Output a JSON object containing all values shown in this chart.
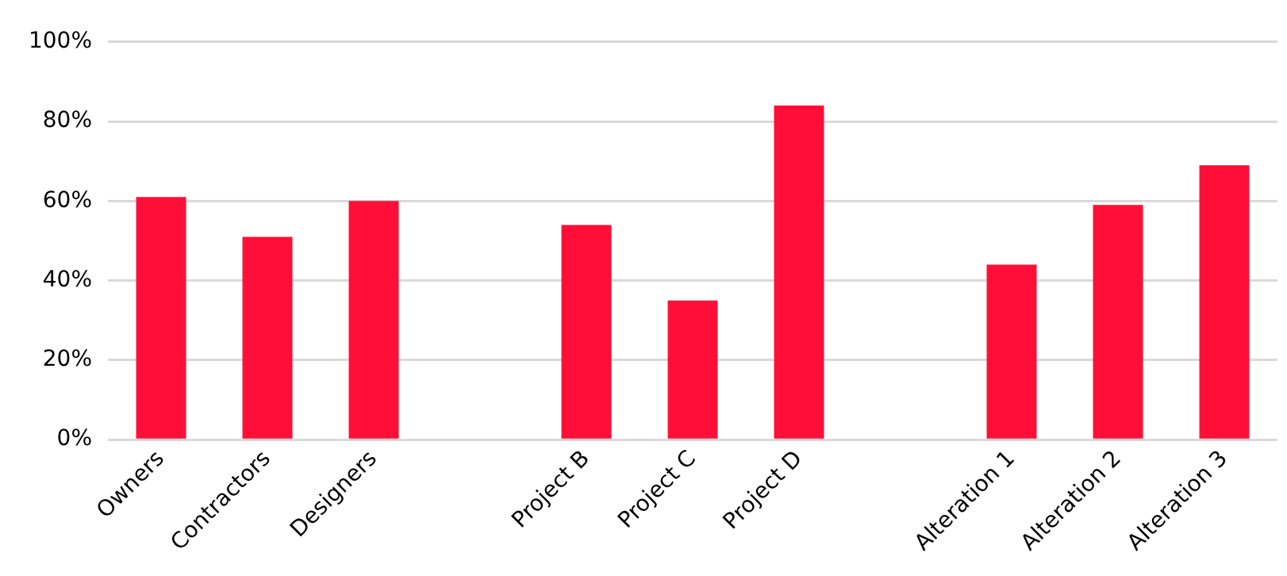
{
  "chart_data": {
    "type": "bar",
    "categories": [
      "Owners",
      "Contractors",
      "Designers",
      null,
      "Project B",
      "Project C",
      "Project D",
      null,
      "Alteration 1",
      "Alteration 2",
      "Alteration 3"
    ],
    "values": [
      61,
      51,
      60,
      null,
      54,
      35,
      84,
      null,
      44,
      59,
      69
    ],
    "color": "#ff0f37",
    "ylim": [
      0,
      100
    ],
    "yticks": [
      {
        "value": 0,
        "label": "0%"
      },
      {
        "value": 20,
        "label": "20%"
      },
      {
        "value": 40,
        "label": "40%"
      },
      {
        "value": 60,
        "label": "60%"
      },
      {
        "value": 80,
        "label": "80%"
      },
      {
        "value": 100,
        "label": "100%"
      }
    ],
    "grid": "y"
  }
}
